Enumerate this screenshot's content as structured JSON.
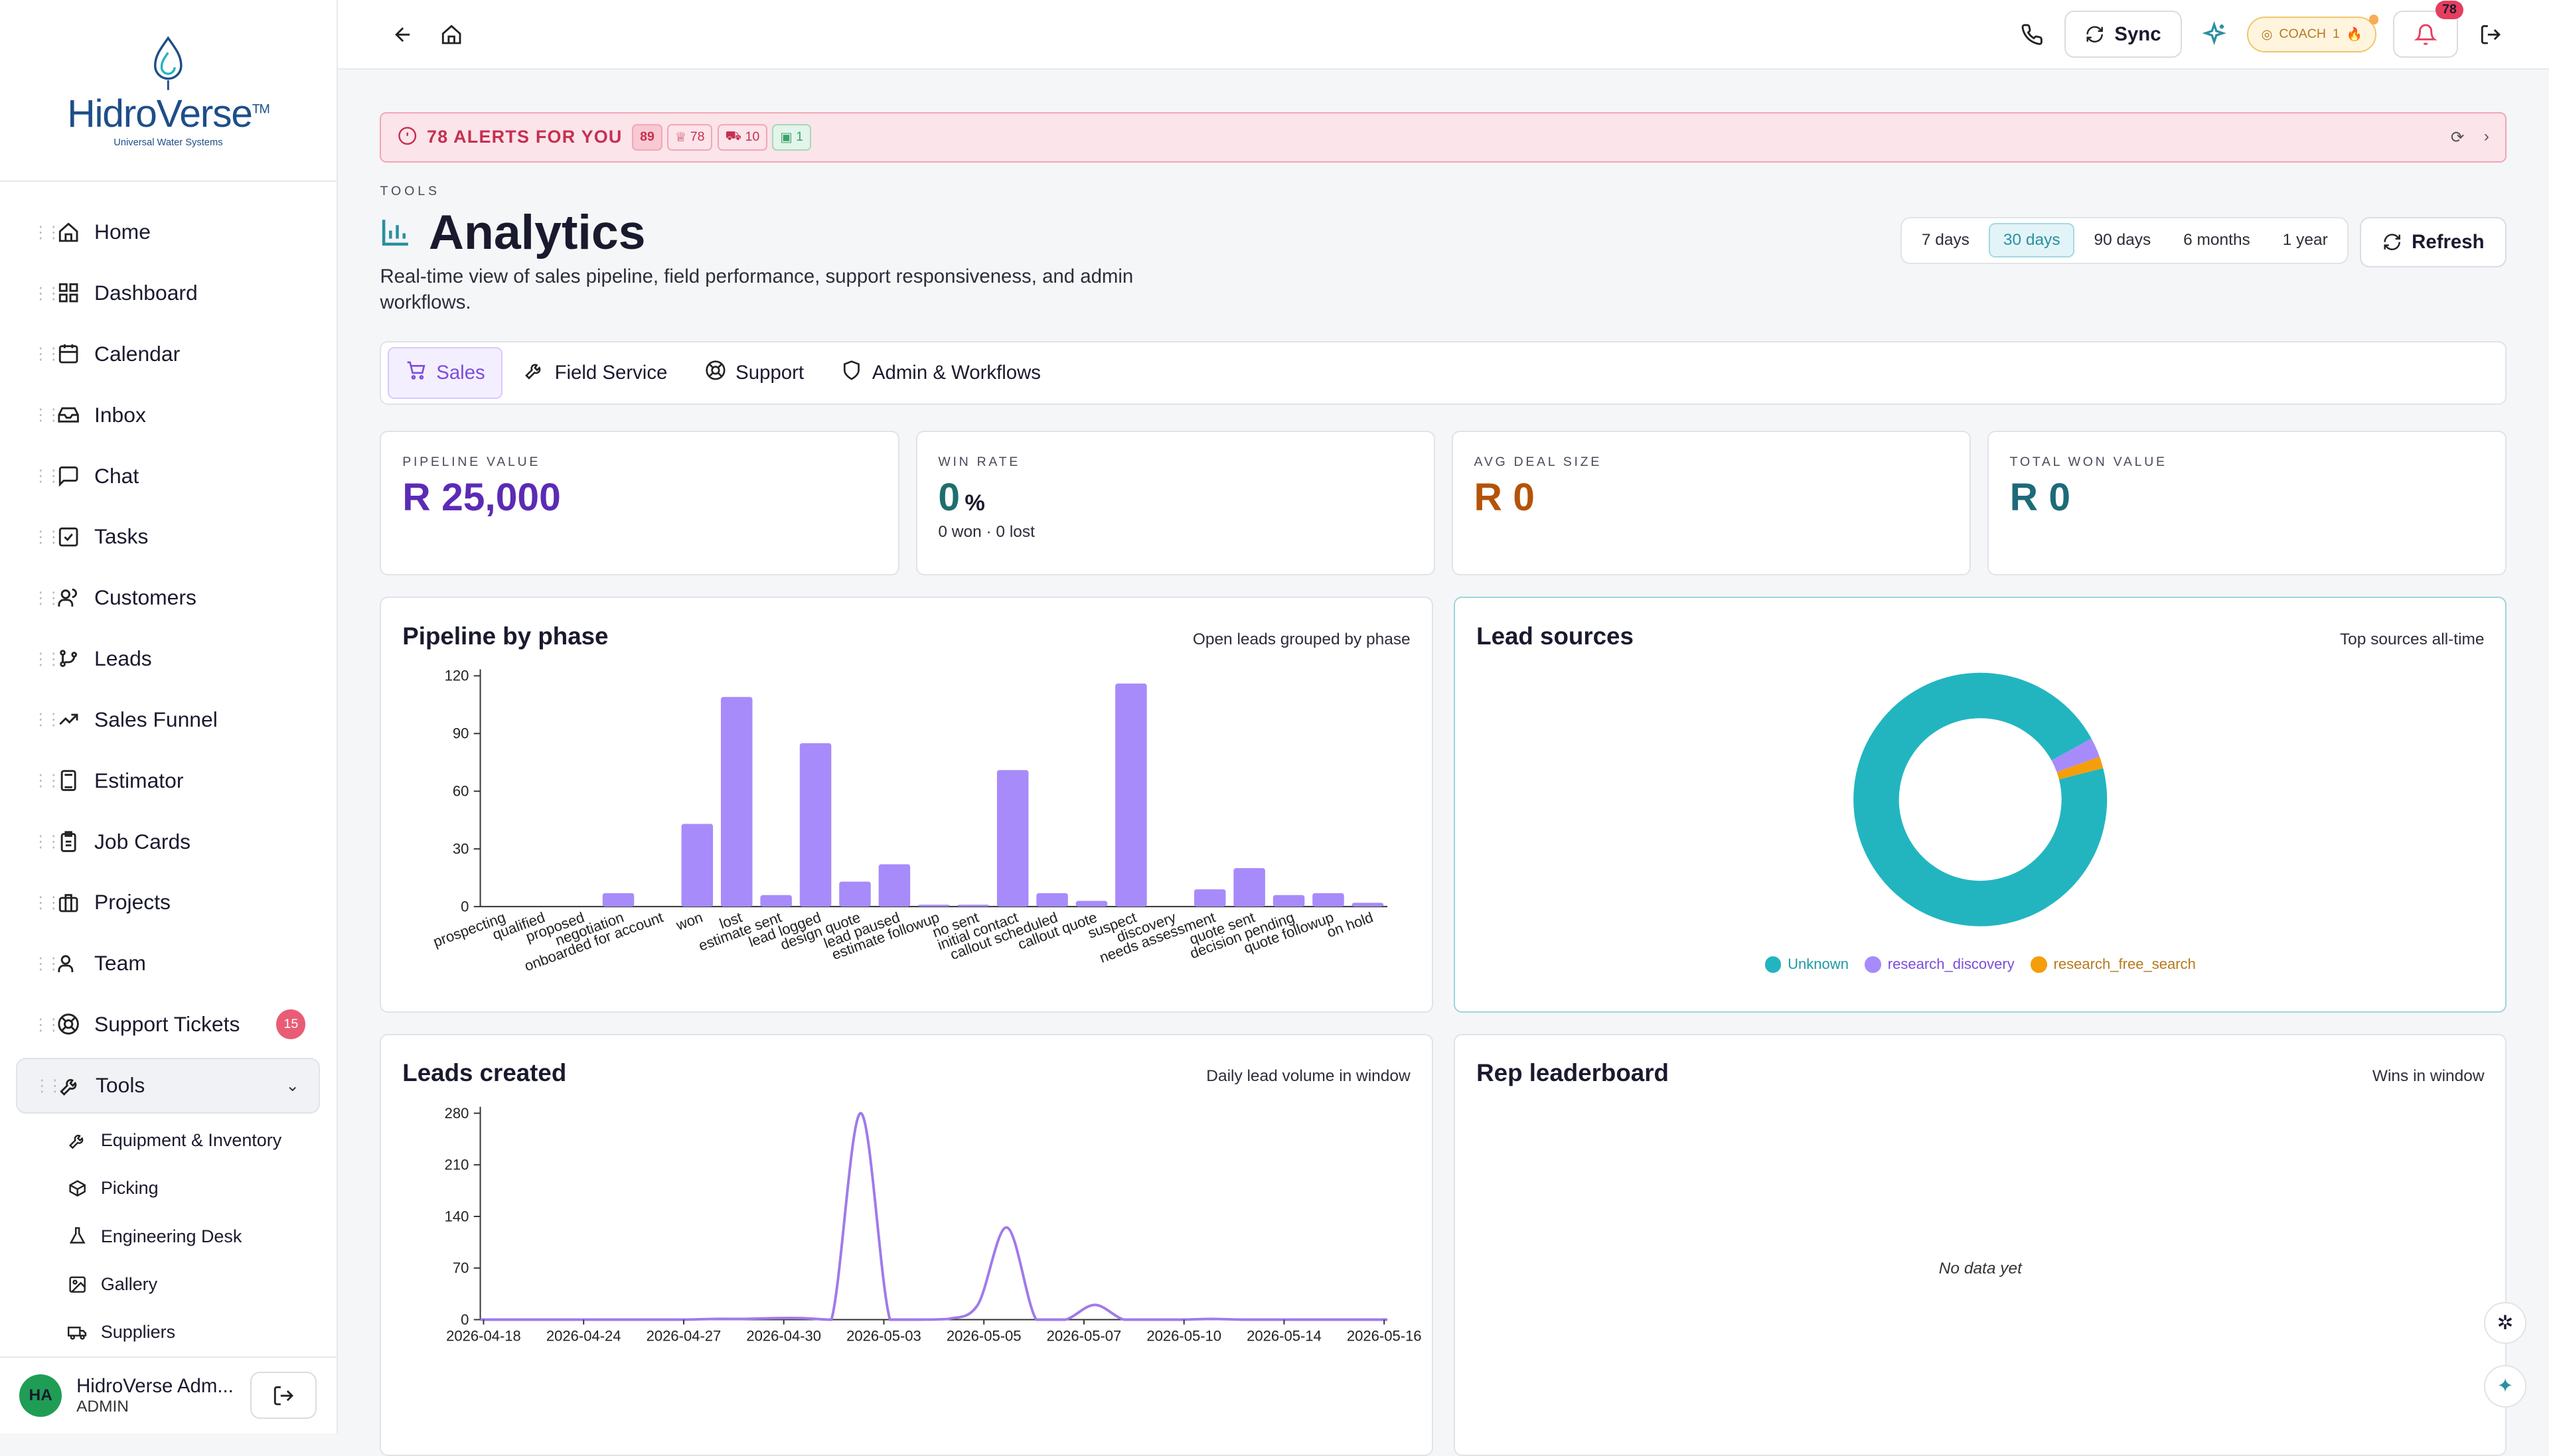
{
  "brand": {
    "name_a": "Hidro",
    "name_b": "Verse",
    "tm": "TM",
    "tagline": "Universal Water Systems"
  },
  "nav": [
    {
      "label": "Home",
      "icon": "home-icon",
      "id": "home"
    },
    {
      "label": "Dashboard",
      "icon": "grid-icon",
      "id": "dashboard"
    },
    {
      "label": "Calendar",
      "icon": "calendar-icon",
      "id": "calendar"
    },
    {
      "label": "Inbox",
      "icon": "inbox-icon",
      "id": "inbox"
    },
    {
      "label": "Chat",
      "icon": "chat-icon",
      "id": "chat"
    },
    {
      "label": "Tasks",
      "icon": "checkbox-icon",
      "id": "tasks"
    },
    {
      "label": "Customers",
      "icon": "users-icon",
      "id": "customers"
    },
    {
      "label": "Leads",
      "icon": "branch-icon",
      "id": "leads"
    },
    {
      "label": "Sales Funnel",
      "icon": "trend-icon",
      "id": "sales-funnel"
    },
    {
      "label": "Estimator",
      "icon": "calculator-icon",
      "id": "estimator"
    },
    {
      "label": "Job Cards",
      "icon": "clipboard-icon",
      "id": "job-cards"
    },
    {
      "label": "Projects",
      "icon": "briefcase-icon",
      "id": "projects"
    },
    {
      "label": "Team",
      "icon": "team-icon",
      "id": "team"
    },
    {
      "label": "Support Tickets",
      "icon": "lifebuoy-icon",
      "id": "support-tickets",
      "badge": "15"
    }
  ],
  "tools": {
    "label": "Tools",
    "sub": [
      "Equipment & Inventory",
      "Picking",
      "Engineering Desk",
      "Gallery",
      "Suppliers"
    ]
  },
  "user": {
    "initials": "HA",
    "name": "HidroVerse Adm...",
    "role": "ADMIN"
  },
  "topbar": {
    "sync": "Sync",
    "coach": "COACH",
    "coach_count": "1",
    "notif_count": "78"
  },
  "alert": {
    "title": "78 ALERTS FOR YOU",
    "count": "89",
    "chip1": "78",
    "chip2": "10",
    "chip3": "1"
  },
  "page": {
    "kicker": "TOOLS",
    "title": "Analytics",
    "subtitle": "Real-time view of sales pipeline, field performance, support responsiveness, and admin workflows."
  },
  "ranges": [
    "7 days",
    "30 days",
    "90 days",
    "6 months",
    "1 year"
  ],
  "refresh": "Refresh",
  "tabs": [
    {
      "label": "Sales",
      "icon": "cart-icon"
    },
    {
      "label": "Field Service",
      "icon": "wrench-icon"
    },
    {
      "label": "Support",
      "icon": "lifebuoy-icon"
    },
    {
      "label": "Admin & Workflows",
      "icon": "shield-icon"
    }
  ],
  "kpis": [
    {
      "label": "PIPELINE VALUE",
      "value": "R 25,000",
      "color": "#5b2bb5"
    },
    {
      "label": "WIN RATE",
      "value": "0",
      "unit": "%",
      "sub": "0 won · 0 lost",
      "color": "#1f6e6e"
    },
    {
      "label": "AVG DEAL SIZE",
      "value": "R 0",
      "color": "#b45309"
    },
    {
      "label": "TOTAL WON VALUE",
      "value": "R 0",
      "color": "#1d6b78"
    }
  ],
  "cards": {
    "pipeline": {
      "title": "Pipeline by phase",
      "note": "Open leads grouped by phase"
    },
    "sources": {
      "title": "Lead sources",
      "note": "Top sources all-time"
    },
    "created": {
      "title": "Leads created",
      "note": "Daily lead volume in window"
    },
    "leaderboard": {
      "title": "Rep leaderboard",
      "note": "Wins in window",
      "empty": "No data yet"
    }
  },
  "chart_data": [
    {
      "type": "bar",
      "title": "Pipeline by phase",
      "categories": [
        "prospecting",
        "qualified",
        "proposed",
        "negotiation",
        "onboarded for account",
        "won",
        "lost",
        "estimate sent",
        "lead logged",
        "design quote",
        "lead paused",
        "estimate followup",
        "no sent",
        "initial contact",
        "callout scheduled",
        "callout quote",
        "suspect",
        "discovery",
        "needs assessment",
        "quote sent",
        "decision pending",
        "quote followup",
        "on hold"
      ],
      "values": [
        0,
        0,
        0,
        7,
        0,
        43,
        109,
        6,
        85,
        13,
        22,
        1,
        1,
        71,
        7,
        3,
        116,
        0,
        9,
        20,
        6,
        7,
        2
      ],
      "ylim": [
        0,
        120
      ],
      "yticks": [
        0,
        30,
        60,
        90,
        120
      ],
      "color": "#a78bfa"
    },
    {
      "type": "pie",
      "title": "Lead sources",
      "labels": [
        "Unknown",
        "research_discovery",
        "research_free_search"
      ],
      "values": [
        96,
        2.5,
        1.5
      ],
      "colors": [
        "#22b5c0",
        "#a78bfa",
        "#f59e0b"
      ]
    },
    {
      "type": "line",
      "title": "Leads created",
      "x_ticks": [
        "2026-04-18",
        "2026-04-24",
        "2026-04-27",
        "2026-04-30",
        "2026-05-03",
        "2026-05-05",
        "2026-05-07",
        "2026-05-10",
        "2026-05-14",
        "2026-05-16"
      ],
      "y": [
        0,
        0,
        0,
        0,
        0,
        0,
        0,
        0,
        1,
        1,
        2,
        2,
        0,
        280,
        0,
        0,
        1,
        20,
        125,
        0,
        0,
        20,
        0,
        0,
        0,
        1,
        0,
        0,
        0,
        0,
        0,
        0
      ],
      "ylim": [
        0,
        280
      ],
      "yticks": [
        0,
        70,
        140,
        210,
        280
      ],
      "color": "#9f7aea"
    }
  ]
}
